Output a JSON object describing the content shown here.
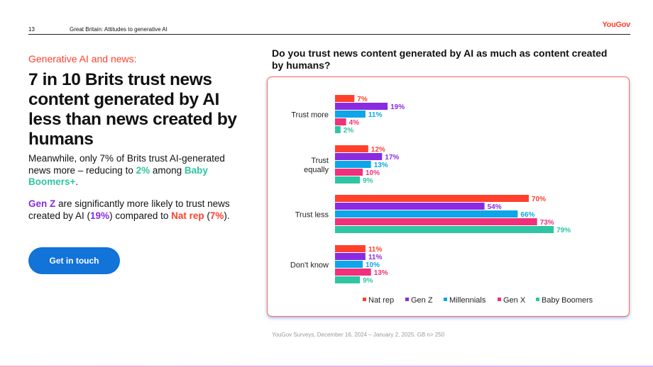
{
  "header": {
    "page_number": "13",
    "section_title": "Great Britain: Attitudes to generative AI",
    "logo_text": "YouGov"
  },
  "left": {
    "eyebrow": "Generative AI and news:",
    "headline": "7 in 10 Brits trust news content generated by AI less than news created by humans",
    "para1_text": "Meanwhile, only 7% of Brits trust AI-generated news more – reducing to ",
    "para1_hl1": "2%",
    "para1_mid": " among ",
    "para1_hl2": "Baby Boomers+",
    "para1_end": ".",
    "para2_hl1": "Gen Z",
    "para2_text": " are significantly more likely to trust news created by AI (",
    "para2_hl2": "19%",
    "para2_mid": ") compared to ",
    "para2_hl3": "Nat rep",
    "para2_paren_open": " (",
    "para2_hl4": "7%",
    "para2_end": ").",
    "cta_label": "Get in touch"
  },
  "question": "Do you trust news content generated by AI as much as content created by humans?",
  "source": "YouGov Surveys, December 16, 2024 – January 2, 2025. GB n> 250",
  "colors": {
    "accent": "#ff412c",
    "nat_rep": "#ff412c",
    "gen_z": "#8a2be2",
    "millennials": "#0ea5e9",
    "gen_x": "#f0307a",
    "baby_boomers": "#2ec5a3",
    "cta": "#1273d9"
  },
  "chart_data": {
    "type": "bar",
    "orientation": "horizontal",
    "title": "Do you trust news content generated by AI as much as content created by humans?",
    "categories": [
      "Trust more",
      "Trust equally",
      "Trust less",
      "Don't know"
    ],
    "category_lines": [
      [
        "Trust more"
      ],
      [
        "Trust",
        "equally"
      ],
      [
        "Trust less"
      ],
      [
        "Don't know"
      ]
    ],
    "series": [
      {
        "name": "Nat rep",
        "color": "#ff412c",
        "values": [
          7,
          12,
          70,
          11
        ]
      },
      {
        "name": "Gen Z",
        "color": "#8a2be2",
        "values": [
          19,
          17,
          54,
          11
        ]
      },
      {
        "name": "Millennials",
        "color": "#0ea5e9",
        "values": [
          11,
          13,
          66,
          10
        ]
      },
      {
        "name": "Gen X",
        "color": "#f0307a",
        "values": [
          4,
          10,
          73,
          13
        ]
      },
      {
        "name": "Baby Boomers",
        "color": "#2ec5a3",
        "values": [
          2,
          9,
          79,
          9
        ]
      }
    ],
    "value_suffix": "%",
    "xlim": [
      0,
      80
    ],
    "grid": false,
    "legend_position": "bottom"
  }
}
